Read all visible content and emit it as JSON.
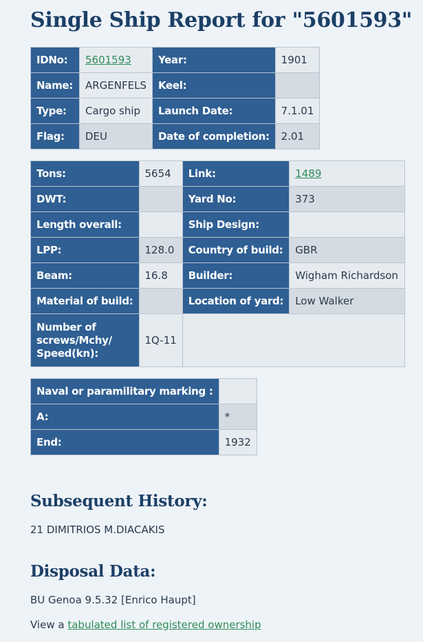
{
  "page": {
    "title": "Single Ship Report for \"5601593\""
  },
  "table1": {
    "rows": [
      {
        "l1": "IDNo:",
        "v1": "5601593",
        "l2": "Year:",
        "v2": "1901"
      },
      {
        "l1": "Name:",
        "v1": "ARGENFELS",
        "l2": "Keel:",
        "v2": ""
      },
      {
        "l1": "Type:",
        "v1": "Cargo ship",
        "l2": "Launch Date:",
        "v2": "7.1.01"
      },
      {
        "l1": "Flag:",
        "v1": "DEU",
        "l2": "Date of completion:",
        "v2": "2.01"
      }
    ]
  },
  "table2": {
    "rows": [
      {
        "l1": "Tons:",
        "v1": "5654",
        "l2": "Link:",
        "v2": "1489"
      },
      {
        "l1": "DWT:",
        "v1": "",
        "l2": "Yard No:",
        "v2": "373"
      },
      {
        "l1": "Length overall:",
        "v1": "",
        "l2": "Ship Design:",
        "v2": ""
      },
      {
        "l1": "LPP:",
        "v1": "128.0",
        "l2": "Country of build:",
        "v2": "GBR"
      },
      {
        "l1": "Beam:",
        "v1": "16.8",
        "l2": "Builder:",
        "v2": "Wigham Richardson"
      },
      {
        "l1": "Material of build:",
        "v1": "",
        "l2": "Location of yard:",
        "v2": "Low Walker"
      }
    ],
    "screws_label": "Number of screws/Mchy/ Speed(kn):",
    "screws_value": "1Q-11"
  },
  "table3": {
    "rows": [
      {
        "l": "Naval or paramilitary marking :",
        "v": ""
      },
      {
        "l": "A:",
        "v": "*"
      },
      {
        "l": "End:",
        "v": "1932"
      }
    ]
  },
  "history": {
    "heading": "Subsequent History:",
    "text": "21 DIMITRIOS M.DIACAKIS"
  },
  "disposal": {
    "heading": "Disposal Data:",
    "text": "BU Genoa 9.5.32 [Enrico Haupt]",
    "view_prefix": "View a",
    "view_link": "tabulated list of registered ownership"
  }
}
